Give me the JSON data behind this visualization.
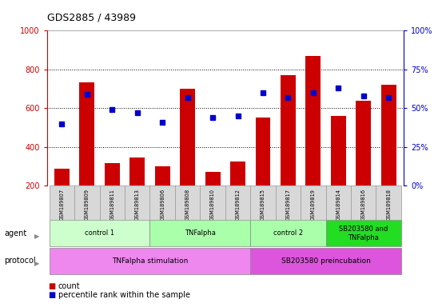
{
  "title": "GDS2885 / 43989",
  "samples": [
    "GSM189807",
    "GSM189809",
    "GSM189811",
    "GSM189813",
    "GSM189806",
    "GSM189808",
    "GSM189810",
    "GSM189812",
    "GSM189815",
    "GSM189817",
    "GSM189819",
    "GSM189814",
    "GSM189816",
    "GSM189818"
  ],
  "counts": [
    290,
    735,
    315,
    345,
    300,
    700,
    270,
    325,
    550,
    770,
    870,
    560,
    640,
    720
  ],
  "percentiles": [
    40,
    59,
    49,
    47,
    41,
    57,
    44,
    45,
    60,
    57,
    60,
    63,
    58,
    57
  ],
  "ylim_left": [
    200,
    1000
  ],
  "ylim_right": [
    0,
    100
  ],
  "yticks_left": [
    200,
    400,
    600,
    800,
    1000
  ],
  "yticks_right": [
    0,
    25,
    50,
    75,
    100
  ],
  "bar_color": "#cc0000",
  "dot_color": "#0000cc",
  "agent_groups": [
    {
      "label": "control 1",
      "start": 0,
      "end": 4,
      "color": "#ccffcc"
    },
    {
      "label": "TNFalpha",
      "start": 4,
      "end": 8,
      "color": "#aaffaa"
    },
    {
      "label": "control 2",
      "start": 8,
      "end": 11,
      "color": "#aaffaa"
    },
    {
      "label": "SB203580 and\nTNFalpha",
      "start": 11,
      "end": 14,
      "color": "#22dd22"
    }
  ],
  "protocol_groups": [
    {
      "label": "TNFalpha stimulation",
      "start": 0,
      "end": 8,
      "color": "#ee88ee"
    },
    {
      "label": "SB203580 preincubation",
      "start": 8,
      "end": 14,
      "color": "#dd55dd"
    }
  ],
  "legend_count_color": "#cc0000",
  "legend_pct_color": "#0000cc",
  "grid_color": "#000000",
  "tick_color_left": "#cc0000",
  "tick_color_right": "#0000cc"
}
